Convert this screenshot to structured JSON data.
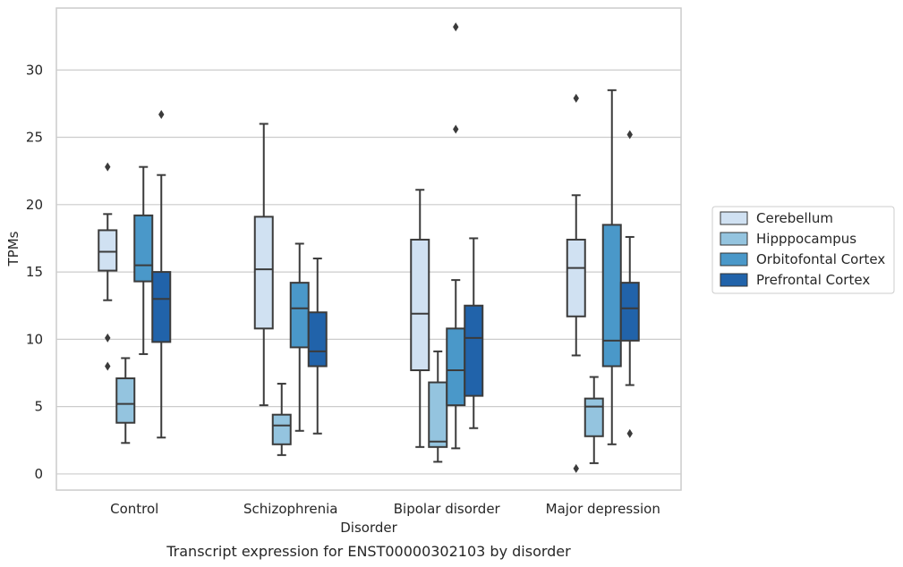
{
  "chart_data": {
    "type": "box",
    "title": "",
    "xlabel": "Disorder",
    "ylabel": "TPMs",
    "caption": "Transcript expression for ENST00000302103 by disorder",
    "categories": [
      "Control",
      "Schizophrenia",
      "Bipolar disorder",
      "Major depression"
    ],
    "ylim": [
      -1.2,
      34.6
    ],
    "yticks": [
      0,
      5,
      10,
      15,
      20,
      25,
      30
    ],
    "grid": "horizontal",
    "legend_position": "right",
    "series": [
      {
        "name": "Cerebellum",
        "color": "#d0e1f2",
        "boxes": [
          {
            "whisker_low": 12.9,
            "q1": 15.1,
            "median": 16.5,
            "q3": 18.1,
            "whisker_high": 19.3,
            "outliers": [
              22.8,
              10.1,
              8.0
            ]
          },
          {
            "whisker_low": 5.1,
            "q1": 10.8,
            "median": 15.2,
            "q3": 19.1,
            "whisker_high": 26.0,
            "outliers": []
          },
          {
            "whisker_low": 2.0,
            "q1": 7.7,
            "median": 11.9,
            "q3": 17.4,
            "whisker_high": 21.1,
            "outliers": []
          },
          {
            "whisker_low": 8.8,
            "q1": 11.7,
            "median": 15.3,
            "q3": 17.4,
            "whisker_high": 20.7,
            "outliers": [
              27.9,
              0.4
            ]
          }
        ]
      },
      {
        "name": "Hipppocampus",
        "color": "#94c4df",
        "boxes": [
          {
            "whisker_low": 2.3,
            "q1": 3.8,
            "median": 5.2,
            "q3": 7.1,
            "whisker_high": 8.6,
            "outliers": []
          },
          {
            "whisker_low": 1.4,
            "q1": 2.2,
            "median": 3.6,
            "q3": 4.4,
            "whisker_high": 6.7,
            "outliers": []
          },
          {
            "whisker_low": 0.9,
            "q1": 2.0,
            "median": 2.4,
            "q3": 6.8,
            "whisker_high": 9.1,
            "outliers": []
          },
          {
            "whisker_low": 0.8,
            "q1": 2.8,
            "median": 5.0,
            "q3": 5.6,
            "whisker_high": 7.2,
            "outliers": []
          }
        ]
      },
      {
        "name": "Orbitofontal Cortex",
        "color": "#4a98c9",
        "boxes": [
          {
            "whisker_low": 8.9,
            "q1": 14.3,
            "median": 15.5,
            "q3": 19.2,
            "whisker_high": 22.8,
            "outliers": []
          },
          {
            "whisker_low": 3.2,
            "q1": 9.4,
            "median": 12.3,
            "q3": 14.2,
            "whisker_high": 17.1,
            "outliers": []
          },
          {
            "whisker_low": 1.9,
            "q1": 5.1,
            "median": 7.7,
            "q3": 10.8,
            "whisker_high": 14.4,
            "outliers": [
              33.2,
              25.6
            ]
          },
          {
            "whisker_low": 2.2,
            "q1": 8.0,
            "median": 9.9,
            "q3": 18.5,
            "whisker_high": 28.5,
            "outliers": []
          }
        ]
      },
      {
        "name": "Prefrontal Cortex",
        "color": "#2163aa",
        "boxes": [
          {
            "whisker_low": 2.7,
            "q1": 9.8,
            "median": 13.0,
            "q3": 15.0,
            "whisker_high": 22.2,
            "outliers": [
              26.7
            ]
          },
          {
            "whisker_low": 3.0,
            "q1": 8.0,
            "median": 9.1,
            "q3": 12.0,
            "whisker_high": 16.0,
            "outliers": []
          },
          {
            "whisker_low": 3.4,
            "q1": 5.8,
            "median": 10.1,
            "q3": 12.5,
            "whisker_high": 17.5,
            "outliers": []
          },
          {
            "whisker_low": 6.6,
            "q1": 9.9,
            "median": 12.3,
            "q3": 14.2,
            "whisker_high": 17.6,
            "outliers": [
              25.2,
              3.0
            ]
          }
        ]
      }
    ]
  }
}
